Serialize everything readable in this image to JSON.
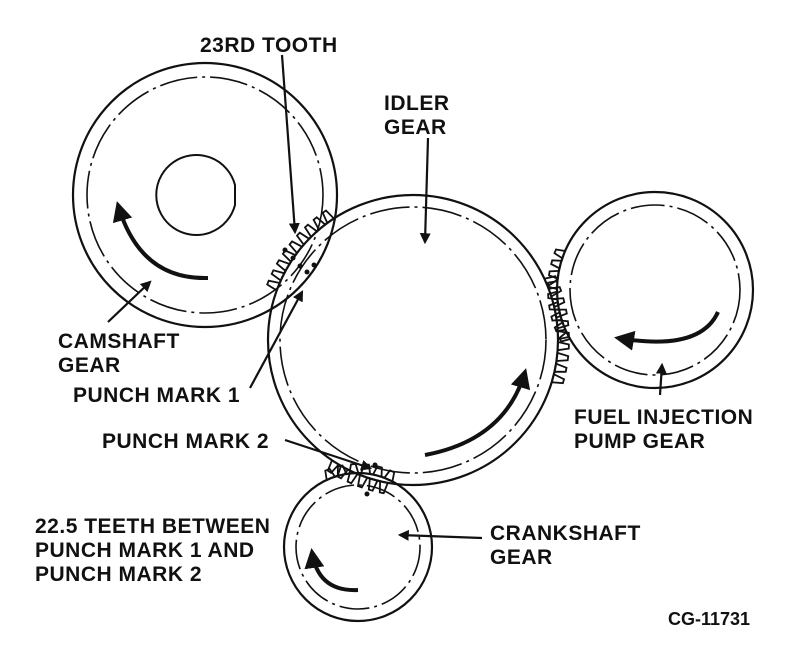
{
  "labels": {
    "tooth_23rd": "23RD TOOTH",
    "idler_gear": [
      "IDLER",
      "GEAR"
    ],
    "camshaft_gear": [
      "CAMSHAFT",
      "GEAR"
    ],
    "punch_mark_1": "PUNCH MARK 1",
    "punch_mark_2": "PUNCH MARK 2",
    "fuel_injection_pump_gear": [
      "FUEL INJECTION",
      "PUMP GEAR"
    ],
    "crankshaft_gear": [
      "CRANKSHAFT",
      "GEAR"
    ],
    "teeth_between": [
      "22.5 TEETH BETWEEN",
      "PUNCH MARK 1 AND",
      "PUNCH MARK 2"
    ],
    "figure_id": "CG-11731"
  },
  "colors": {
    "ink": "#111111",
    "background": "#ffffff"
  }
}
